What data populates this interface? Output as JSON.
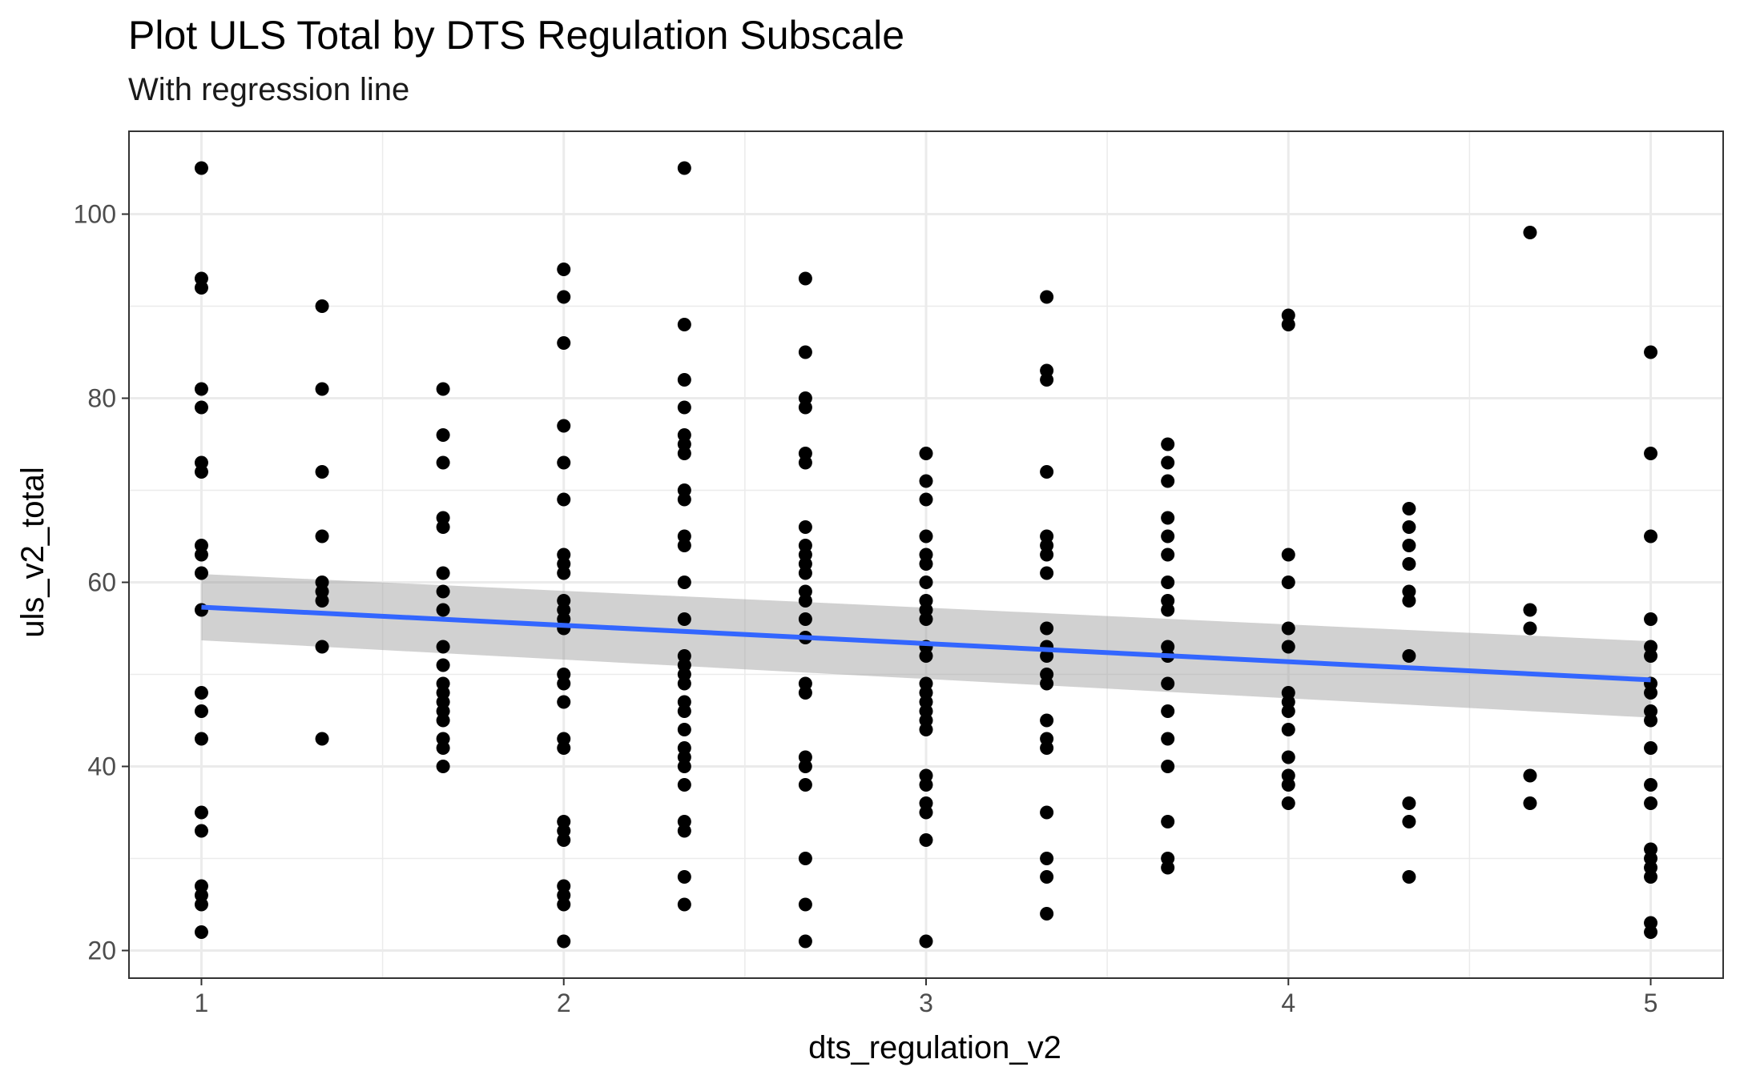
{
  "chart_data": {
    "type": "scatter",
    "title": "Plot ULS Total by DTS Regulation Subscale",
    "subtitle": "With regression line",
    "xlabel": "dts_regulation_v2",
    "ylabel": "uls_v2_total",
    "xlim": [
      0.8,
      5.2
    ],
    "ylim": [
      17,
      109
    ],
    "x_ticks": [
      1,
      2,
      3,
      4,
      5
    ],
    "y_ticks": [
      20,
      40,
      60,
      80,
      100
    ],
    "grid": true,
    "points": [
      {
        "x": 1,
        "y": [
          105,
          93,
          92,
          81,
          79,
          73,
          72,
          64,
          63,
          61,
          57,
          48,
          46,
          43,
          35,
          33,
          27,
          26,
          25,
          22
        ]
      },
      {
        "x": 1.333,
        "y": [
          90,
          81,
          72,
          65,
          60,
          59,
          58,
          53,
          43
        ]
      },
      {
        "x": 1.667,
        "y": [
          81,
          76,
          73,
          67,
          66,
          61,
          59,
          57,
          53,
          51,
          49,
          48,
          47,
          46,
          45,
          43,
          42,
          40
        ]
      },
      {
        "x": 2,
        "y": [
          94,
          91,
          86,
          77,
          73,
          69,
          63,
          62,
          61,
          58,
          57,
          56,
          55,
          50,
          49,
          47,
          43,
          42,
          34,
          33,
          32,
          27,
          26,
          25,
          21
        ]
      },
      {
        "x": 2.333,
        "y": [
          105,
          88,
          82,
          79,
          76,
          75,
          74,
          70,
          69,
          65,
          64,
          60,
          56,
          52,
          51,
          50,
          49,
          47,
          46,
          44,
          42,
          41,
          40,
          38,
          34,
          33,
          28,
          25
        ]
      },
      {
        "x": 2.667,
        "y": [
          93,
          85,
          80,
          79,
          74,
          73,
          66,
          64,
          63,
          62,
          61,
          59,
          58,
          56,
          54,
          49,
          48,
          41,
          40,
          38,
          30,
          25,
          21
        ]
      },
      {
        "x": 3,
        "y": [
          74,
          71,
          69,
          65,
          63,
          62,
          60,
          58,
          57,
          56,
          53,
          52,
          49,
          48,
          47,
          46,
          45,
          44,
          39,
          38,
          36,
          35,
          32,
          21
        ]
      },
      {
        "x": 3.333,
        "y": [
          91,
          83,
          82,
          72,
          65,
          64,
          63,
          61,
          55,
          53,
          52,
          50,
          49,
          45,
          43,
          42,
          35,
          30,
          28,
          24
        ]
      },
      {
        "x": 3.667,
        "y": [
          75,
          73,
          71,
          67,
          65,
          63,
          60,
          58,
          57,
          53,
          52,
          49,
          46,
          43,
          40,
          34,
          30,
          29
        ]
      },
      {
        "x": 4,
        "y": [
          89,
          88,
          63,
          60,
          55,
          53,
          48,
          47,
          46,
          44,
          41,
          39,
          38,
          36
        ]
      },
      {
        "x": 4.333,
        "y": [
          68,
          66,
          64,
          62,
          59,
          58,
          52,
          36,
          34,
          28
        ]
      },
      {
        "x": 4.667,
        "y": [
          98,
          57,
          55,
          39,
          36
        ]
      },
      {
        "x": 5,
        "y": [
          85,
          74,
          65,
          56,
          53,
          52,
          49,
          48,
          46,
          45,
          42,
          38,
          36,
          31,
          30,
          29,
          28,
          23,
          22
        ]
      }
    ],
    "regression": {
      "method": "lm",
      "x": [
        1,
        5
      ],
      "y": [
        57.3,
        49.4
      ],
      "ci_lower": [
        53.7,
        45.3
      ],
      "ci_upper": [
        60.9,
        53.6
      ],
      "line_color": "#3366FF",
      "band_color": "#999999"
    },
    "point_color": "#000000"
  }
}
